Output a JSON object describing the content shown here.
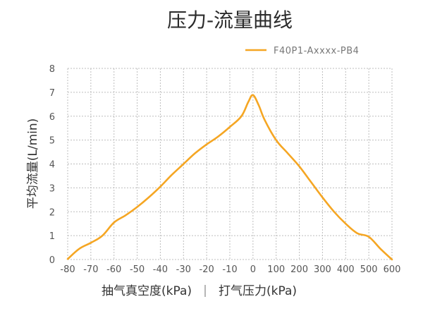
{
  "chart_data": {
    "type": "line",
    "title": "压力-流量曲线",
    "ylabel": "平均流量(L/min)",
    "xlabel_left": "抽气真空度(kPa)",
    "xlabel_separator": "|",
    "xlabel_right": "打气压力(kPa)",
    "x_tick_labels": [
      "-80",
      "-70",
      "-60",
      "-50",
      "-40",
      "-30",
      "-20",
      "-10",
      "0",
      "100",
      "200",
      "300",
      "400",
      "500",
      "600"
    ],
    "y_tick_labels": [
      "0",
      "1",
      "2",
      "3",
      "4",
      "5",
      "6",
      "7",
      "8"
    ],
    "ylim": [
      0,
      8
    ],
    "grid": true,
    "legend_position": "top-right",
    "series": [
      {
        "name": "F40P1-Axxxx-PB4",
        "color": "#F5A623",
        "x": [
          -80,
          -75,
          -70,
          -65,
          -60,
          -55,
          -50,
          -45,
          -40,
          -35,
          -30,
          -25,
          -20,
          -15,
          -10,
          -5,
          -2,
          0,
          25,
          50,
          100,
          150,
          200,
          250,
          300,
          350,
          400,
          450,
          500,
          550,
          600
        ],
        "y": [
          0.02,
          0.45,
          0.7,
          1.0,
          1.55,
          1.85,
          2.2,
          2.6,
          3.05,
          3.55,
          4.0,
          4.45,
          4.82,
          5.15,
          5.55,
          6.0,
          6.6,
          6.88,
          6.45,
          5.85,
          5.0,
          4.45,
          3.9,
          3.25,
          2.6,
          2.0,
          1.5,
          1.1,
          0.95,
          0.45,
          0.0
        ]
      }
    ]
  }
}
